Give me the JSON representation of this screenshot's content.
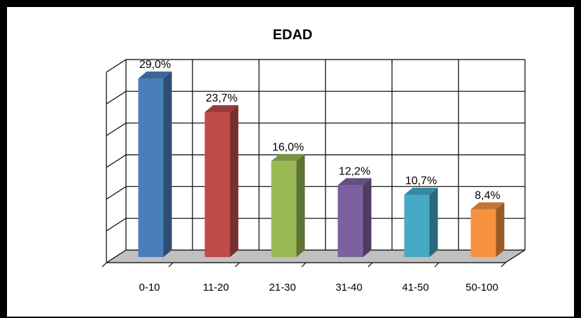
{
  "chart_data": {
    "type": "bar",
    "title": "EDAD",
    "categories": [
      "0-10",
      "11-20",
      "21-30",
      "31-40",
      "41-50",
      "50-100"
    ],
    "values": [
      29.0,
      23.7,
      16.0,
      12.2,
      10.7,
      8.4
    ],
    "value_labels": [
      "29,0%",
      "23,7%",
      "16,0%",
      "12,2%",
      "10,7%",
      "8,4%"
    ],
    "ylim": [
      0,
      30
    ],
    "grid": true,
    "style": "3d-columns",
    "colors": [
      "#4a7ebb",
      "#be4b48",
      "#98b954",
      "#7d60a0",
      "#46aac5",
      "#f69240"
    ]
  }
}
